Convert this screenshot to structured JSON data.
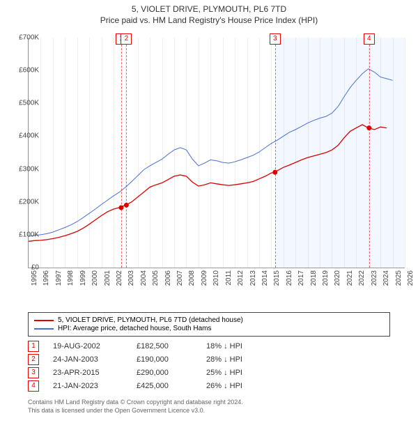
{
  "title_line1": "5, VIOLET DRIVE, PLYMOUTH, PL6 7TD",
  "title_line2": "Price paid vs. HM Land Registry's House Price Index (HPI)",
  "chart": {
    "type": "line",
    "x_min_year": 1995,
    "x_max_year": 2026,
    "y_min": 0,
    "y_max": 700000,
    "y_tick_step": 100000,
    "y_tick_labels": [
      "£0",
      "£100K",
      "£200K",
      "£300K",
      "£400K",
      "£500K",
      "£600K",
      "£700K"
    ],
    "x_ticks": [
      1995,
      1996,
      1997,
      1998,
      1999,
      2000,
      2001,
      2002,
      2003,
      2004,
      2005,
      2006,
      2007,
      2008,
      2009,
      2010,
      2011,
      2012,
      2013,
      2014,
      2015,
      2016,
      2017,
      2018,
      2019,
      2020,
      2021,
      2022,
      2023,
      2024,
      2025,
      2026
    ],
    "shaded_from_year": 2015.3,
    "background_color": "#ffffff",
    "grid_color": "#eeeeee",
    "series": {
      "property": {
        "color": "#dd0000",
        "width": 1.3,
        "points": [
          [
            1995.0,
            80000
          ],
          [
            1995.5,
            82000
          ],
          [
            1996.0,
            83000
          ],
          [
            1996.5,
            85000
          ],
          [
            1997.0,
            88000
          ],
          [
            1997.5,
            92000
          ],
          [
            1998.0,
            97000
          ],
          [
            1998.5,
            103000
          ],
          [
            1999.0,
            110000
          ],
          [
            1999.5,
            120000
          ],
          [
            2000.0,
            132000
          ],
          [
            2000.5,
            145000
          ],
          [
            2001.0,
            158000
          ],
          [
            2001.5,
            170000
          ],
          [
            2002.0,
            178000
          ],
          [
            2002.5,
            183000
          ],
          [
            2003.0,
            190000
          ],
          [
            2003.5,
            200000
          ],
          [
            2004.0,
            215000
          ],
          [
            2004.5,
            230000
          ],
          [
            2005.0,
            245000
          ],
          [
            2005.5,
            252000
          ],
          [
            2006.0,
            258000
          ],
          [
            2006.5,
            268000
          ],
          [
            2007.0,
            278000
          ],
          [
            2007.5,
            282000
          ],
          [
            2008.0,
            278000
          ],
          [
            2008.5,
            260000
          ],
          [
            2009.0,
            248000
          ],
          [
            2009.5,
            252000
          ],
          [
            2010.0,
            258000
          ],
          [
            2010.5,
            255000
          ],
          [
            2011.0,
            252000
          ],
          [
            2011.5,
            250000
          ],
          [
            2012.0,
            252000
          ],
          [
            2012.5,
            255000
          ],
          [
            2013.0,
            258000
          ],
          [
            2013.5,
            262000
          ],
          [
            2014.0,
            270000
          ],
          [
            2014.5,
            278000
          ],
          [
            2015.0,
            288000
          ],
          [
            2015.3,
            290000
          ],
          [
            2015.5,
            295000
          ],
          [
            2016.0,
            305000
          ],
          [
            2016.5,
            312000
          ],
          [
            2017.0,
            320000
          ],
          [
            2017.5,
            328000
          ],
          [
            2018.0,
            335000
          ],
          [
            2018.5,
            340000
          ],
          [
            2019.0,
            345000
          ],
          [
            2019.5,
            350000
          ],
          [
            2020.0,
            358000
          ],
          [
            2020.5,
            372000
          ],
          [
            2021.0,
            395000
          ],
          [
            2021.5,
            415000
          ],
          [
            2022.0,
            425000
          ],
          [
            2022.5,
            435000
          ],
          [
            2023.0,
            425000
          ],
          [
            2023.5,
            420000
          ],
          [
            2024.0,
            428000
          ],
          [
            2024.5,
            425000
          ]
        ]
      },
      "hpi": {
        "color": "#4a6fd8",
        "width": 1.0,
        "points": [
          [
            1995.0,
            95000
          ],
          [
            1995.5,
            98000
          ],
          [
            1996.0,
            100000
          ],
          [
            1996.5,
            103000
          ],
          [
            1997.0,
            108000
          ],
          [
            1997.5,
            115000
          ],
          [
            1998.0,
            122000
          ],
          [
            1998.5,
            130000
          ],
          [
            1999.0,
            140000
          ],
          [
            1999.5,
            152000
          ],
          [
            2000.0,
            165000
          ],
          [
            2000.5,
            178000
          ],
          [
            2001.0,
            192000
          ],
          [
            2001.5,
            205000
          ],
          [
            2002.0,
            218000
          ],
          [
            2002.5,
            230000
          ],
          [
            2003.0,
            245000
          ],
          [
            2003.5,
            262000
          ],
          [
            2004.0,
            280000
          ],
          [
            2004.5,
            298000
          ],
          [
            2005.0,
            310000
          ],
          [
            2005.5,
            320000
          ],
          [
            2006.0,
            330000
          ],
          [
            2006.5,
            345000
          ],
          [
            2007.0,
            358000
          ],
          [
            2007.5,
            365000
          ],
          [
            2008.0,
            358000
          ],
          [
            2008.5,
            330000
          ],
          [
            2009.0,
            310000
          ],
          [
            2009.5,
            318000
          ],
          [
            2010.0,
            328000
          ],
          [
            2010.5,
            325000
          ],
          [
            2011.0,
            320000
          ],
          [
            2011.5,
            318000
          ],
          [
            2012.0,
            322000
          ],
          [
            2012.5,
            328000
          ],
          [
            2013.0,
            335000
          ],
          [
            2013.5,
            342000
          ],
          [
            2014.0,
            352000
          ],
          [
            2014.5,
            365000
          ],
          [
            2015.0,
            378000
          ],
          [
            2015.5,
            388000
          ],
          [
            2016.0,
            400000
          ],
          [
            2016.5,
            412000
          ],
          [
            2017.0,
            420000
          ],
          [
            2017.5,
            430000
          ],
          [
            2018.0,
            440000
          ],
          [
            2018.5,
            448000
          ],
          [
            2019.0,
            455000
          ],
          [
            2019.5,
            460000
          ],
          [
            2020.0,
            470000
          ],
          [
            2020.5,
            490000
          ],
          [
            2021.0,
            520000
          ],
          [
            2021.5,
            548000
          ],
          [
            2022.0,
            570000
          ],
          [
            2022.5,
            590000
          ],
          [
            2023.0,
            605000
          ],
          [
            2023.5,
            595000
          ],
          [
            2024.0,
            580000
          ],
          [
            2024.5,
            575000
          ],
          [
            2025.0,
            570000
          ]
        ]
      }
    },
    "markers": [
      {
        "n": "1",
        "year": 2002.63
      },
      {
        "n": "2",
        "year": 2003.06
      },
      {
        "n": "3",
        "year": 2015.31
      },
      {
        "n": "4",
        "year": 2023.06
      }
    ],
    "sale_points": [
      {
        "year": 2002.63,
        "price": 182500
      },
      {
        "year": 2003.06,
        "price": 190000
      },
      {
        "year": 2015.31,
        "price": 290000
      },
      {
        "year": 2023.06,
        "price": 425000
      }
    ]
  },
  "legend": {
    "items": [
      {
        "color": "#dd0000",
        "label": "5, VIOLET DRIVE, PLYMOUTH, PL6 7TD (detached house)"
      },
      {
        "color": "#4a6fd8",
        "label": "HPI: Average price, detached house, South Hams"
      }
    ]
  },
  "sales": [
    {
      "n": "1",
      "date": "19-AUG-2002",
      "price": "£182,500",
      "delta": "18% ↓ HPI"
    },
    {
      "n": "2",
      "date": "24-JAN-2003",
      "price": "£190,000",
      "delta": "28% ↓ HPI"
    },
    {
      "n": "3",
      "date": "23-APR-2015",
      "price": "£290,000",
      "delta": "25% ↓ HPI"
    },
    {
      "n": "4",
      "date": "21-JAN-2023",
      "price": "£425,000",
      "delta": "26% ↓ HPI"
    }
  ],
  "footer_line1": "Contains HM Land Registry data © Crown copyright and database right 2024.",
  "footer_line2": "This data is licensed under the Open Government Licence v3.0."
}
